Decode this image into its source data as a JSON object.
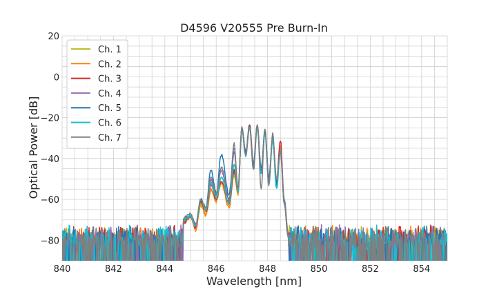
{
  "chart_data": {
    "type": "line",
    "title": "D4596 V20555 Pre Burn-In",
    "xlabel": "Wavelength [nm]",
    "ylabel": "Optical Power [dB]",
    "xlim": [
      840,
      855
    ],
    "ylim": [
      -90,
      20
    ],
    "xticks": [
      840,
      842,
      844,
      846,
      848,
      850,
      852,
      854
    ],
    "yticks": [
      -80,
      -60,
      -40,
      -20,
      0,
      20
    ],
    "grid": true,
    "legend_position": "top-left",
    "noise_floor_db": -82,
    "series": [
      {
        "name": "Ch. 1",
        "color": "#bcbd22",
        "x": [
          844.7,
          845.0,
          845.2,
          845.4,
          845.6,
          845.8,
          846.0,
          846.2,
          846.5,
          846.7,
          846.85,
          847.0,
          847.15,
          847.3,
          847.45,
          847.6,
          847.75,
          847.9,
          848.05,
          848.2,
          848.35,
          848.5,
          848.65,
          848.8
        ],
        "y": [
          -72,
          -68,
          -74,
          -63,
          -67,
          -56,
          -60,
          -52,
          -63,
          -48,
          -58,
          -26,
          -38,
          -24,
          -44,
          -24,
          -47,
          -27,
          -52,
          -30,
          -53,
          -34,
          -60,
          -76
        ]
      },
      {
        "name": "Ch. 2",
        "color": "#ff7f0e",
        "x": [
          844.7,
          845.0,
          845.2,
          845.4,
          845.6,
          845.8,
          846.0,
          846.2,
          846.5,
          846.7,
          846.85,
          847.0,
          847.15,
          847.3,
          847.45,
          847.6,
          847.75,
          847.9,
          848.05,
          848.2,
          848.35,
          848.5,
          848.65,
          848.8
        ],
        "y": [
          -72,
          -69,
          -75,
          -62,
          -68,
          -55,
          -61,
          -52,
          -64,
          -47,
          -57,
          -25,
          -37,
          -24,
          -43,
          -25,
          -46,
          -27,
          -51,
          -31,
          -52,
          -34,
          -62,
          -78
        ]
      },
      {
        "name": "Ch. 3",
        "color": "#d62728",
        "x": [
          844.7,
          845.0,
          845.2,
          845.4,
          845.6,
          845.8,
          846.0,
          846.2,
          846.5,
          846.7,
          846.85,
          847.0,
          847.15,
          847.3,
          847.45,
          847.6,
          847.75,
          847.9,
          848.05,
          848.2,
          848.35,
          848.5,
          848.65,
          848.8
        ],
        "y": [
          -72,
          -68,
          -74,
          -61,
          -66,
          -53,
          -60,
          -51,
          -62,
          -46,
          -56,
          -25,
          -37,
          -23,
          -42,
          -24,
          -45,
          -26,
          -50,
          -30,
          -51,
          -31,
          -60,
          -77
        ]
      },
      {
        "name": "Ch. 4",
        "color": "#9467bd",
        "x": [
          844.7,
          845.0,
          845.2,
          845.4,
          845.6,
          845.8,
          846.0,
          846.2,
          846.5,
          846.7,
          846.85,
          847.0,
          847.15,
          847.3,
          847.45,
          847.6,
          847.75,
          847.9,
          848.05,
          848.2,
          848.35,
          848.5,
          848.65,
          848.8
        ],
        "y": [
          -71,
          -68,
          -73,
          -60,
          -65,
          -50,
          -58,
          -46,
          -60,
          -37,
          -55,
          -25,
          -38,
          -24,
          -44,
          -24,
          -47,
          -27,
          -52,
          -30,
          -54,
          -35,
          -60,
          -77
        ]
      },
      {
        "name": "Ch. 5",
        "color": "#1f77b4",
        "x": [
          844.7,
          845.0,
          845.2,
          845.4,
          845.6,
          845.8,
          846.0,
          846.2,
          846.5,
          846.7,
          846.85,
          847.0,
          847.15,
          847.3,
          847.45,
          847.6,
          847.75,
          847.9,
          848.05,
          848.2,
          848.35,
          848.5,
          848.65,
          848.8
        ],
        "y": [
          -70,
          -68,
          -72,
          -61,
          -64,
          -45,
          -57,
          -38,
          -58,
          -35,
          -54,
          -25,
          -37,
          -24,
          -43,
          -24,
          -46,
          -26,
          -50,
          -29,
          -53,
          -36,
          -61,
          -78
        ]
      },
      {
        "name": "Ch. 6",
        "color": "#17becf",
        "x": [
          844.7,
          845.0,
          845.2,
          845.4,
          845.6,
          845.8,
          846.0,
          846.2,
          846.5,
          846.7,
          846.85,
          847.0,
          847.15,
          847.3,
          847.45,
          847.6,
          847.75,
          847.9,
          848.05,
          848.2,
          848.35,
          848.5,
          848.65,
          848.8
        ],
        "y": [
          -70,
          -68,
          -73,
          -60,
          -65,
          -52,
          -59,
          -49,
          -62,
          -43,
          -56,
          -26,
          -39,
          -25,
          -45,
          -25,
          -48,
          -28,
          -53,
          -31,
          -55,
          -36,
          -62,
          -78
        ]
      },
      {
        "name": "Ch. 7",
        "color": "#7f7f7f",
        "x": [
          844.7,
          845.0,
          845.2,
          845.4,
          845.6,
          845.8,
          846.0,
          846.2,
          846.5,
          846.7,
          846.85,
          847.0,
          847.15,
          847.3,
          847.45,
          847.6,
          847.75,
          847.9,
          848.05,
          848.2,
          848.35,
          848.5,
          848.65,
          848.8
        ],
        "y": [
          -69,
          -67,
          -72,
          -60,
          -64,
          -49,
          -58,
          -44,
          -61,
          -33,
          -55,
          -25,
          -39,
          -24,
          -46,
          -23,
          -55,
          -25,
          -53,
          -28,
          -50,
          -37,
          -62,
          -78
        ]
      }
    ]
  }
}
